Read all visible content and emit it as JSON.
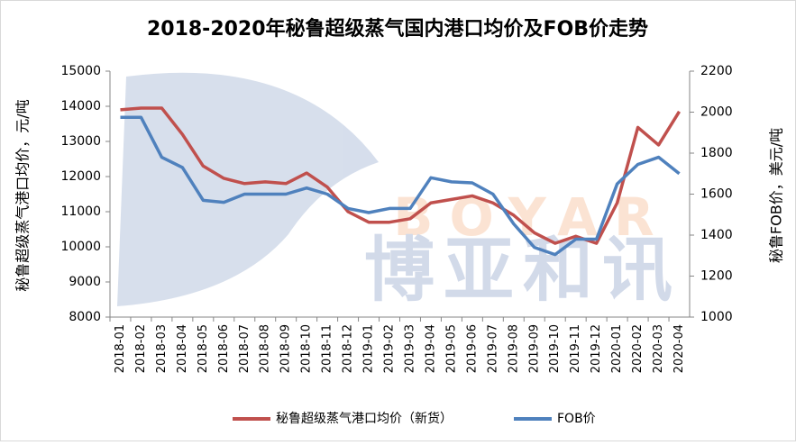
{
  "chart_data": {
    "type": "line",
    "title": "2018-2020年秘鲁超级蒸气国内港口均价及FOB价走势",
    "y_label": "秘鲁超级蒸气港口均价，元/吨",
    "y2_label": "秘鲁FOB价，美元/吨",
    "watermark": {
      "cn": "博亚和讯",
      "en": "BOYAR"
    },
    "categories": [
      "2018-01",
      "2018-02",
      "2018-03",
      "2018-04",
      "2018-05",
      "2018-06",
      "2018-07",
      "2018-08",
      "2018-09",
      "2018-10",
      "2018-11",
      "2018-12",
      "2019-01",
      "2019-02",
      "2019-03",
      "2019-04",
      "2019-05",
      "2019-06",
      "2019-07",
      "2019-08",
      "2019-09",
      "2019-10",
      "2019-11",
      "2019-12",
      "2020-01",
      "2020-02",
      "2020-03",
      "2020-04"
    ],
    "series": [
      {
        "name": "秘鲁超级蒸气港口均价（新货）",
        "color": "#c0504d",
        "values": [
          13900,
          13950,
          13950,
          13200,
          12300,
          11950,
          11800,
          11850,
          11800,
          12100,
          11700,
          11000,
          10700,
          10700,
          10800,
          11250,
          11350,
          11450,
          11250,
          10900,
          10400,
          10100,
          10300,
          10100,
          11250,
          13400,
          12900,
          13850
        ]
      },
      {
        "name": "FOB价",
        "color": "#4f81bd",
        "axis": "y2",
        "values": [
          1975,
          1975,
          1780,
          1730,
          1570,
          1560,
          1600,
          1600,
          1600,
          1630,
          1600,
          1530,
          1510,
          1530,
          1530,
          1680,
          1660,
          1655,
          1600,
          1455,
          1340,
          1305,
          1380,
          1380,
          1650,
          1745,
          1780,
          1700
        ]
      }
    ],
    "ylim": [
      8000,
      15000
    ],
    "yticks": [
      8000,
      9000,
      10000,
      11000,
      12000,
      13000,
      14000,
      15000
    ],
    "y2lim": [
      1000,
      2200
    ],
    "y2ticks": [
      1000,
      1200,
      1400,
      1600,
      1800,
      2000,
      2200
    ],
    "grid": false,
    "legend": "bottom"
  }
}
